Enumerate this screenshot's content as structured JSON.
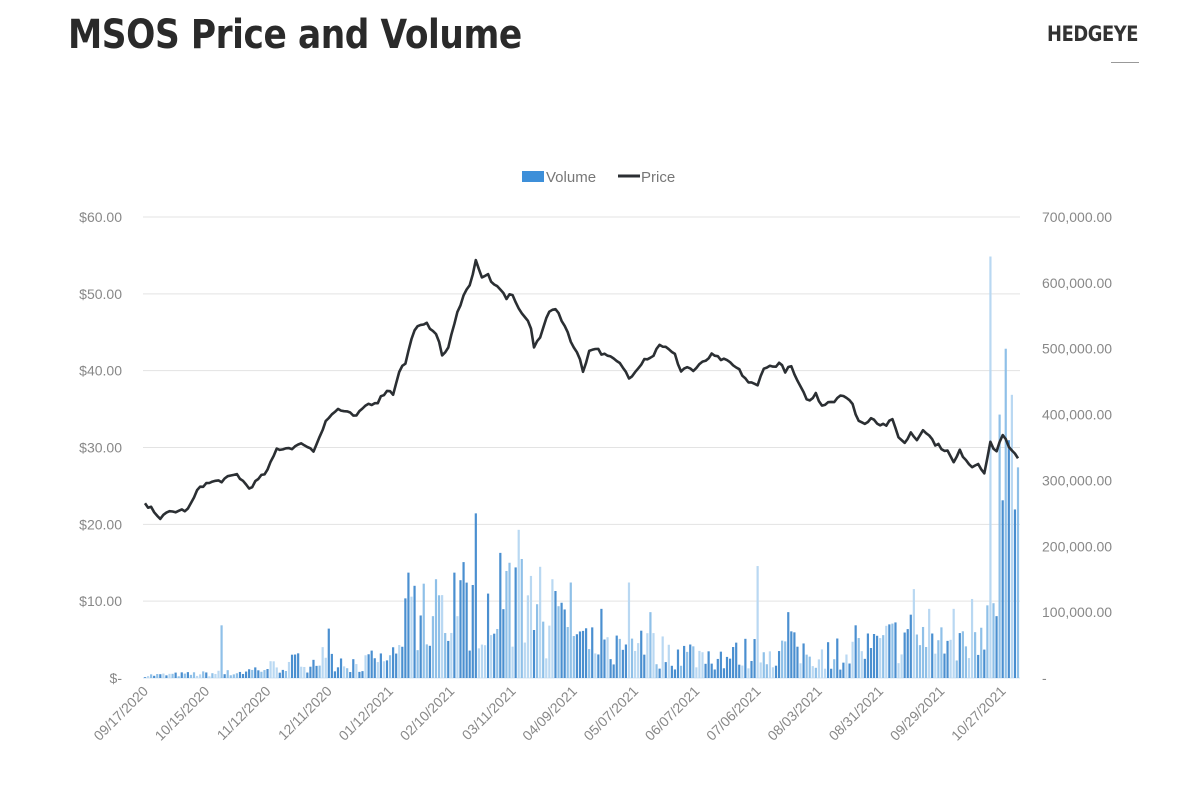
{
  "header": {
    "title": "MSOS Price and Volume",
    "brand": "HEDGEYE"
  },
  "chart_data": {
    "type": "bar+line",
    "title": "MSOS Price and Volume",
    "legend": {
      "placement": "top-center",
      "items": [
        {
          "name": "Volume",
          "type": "bar",
          "color": "#3d8fd9"
        },
        {
          "name": "Price",
          "type": "line",
          "color": "#2b2f33"
        }
      ]
    },
    "left_axis": {
      "label": "Price",
      "range": [
        0,
        60
      ],
      "ticks": [
        {
          "value": 0,
          "label": "$-"
        },
        {
          "value": 10,
          "label": "$10.00"
        },
        {
          "value": 20,
          "label": "$20.00"
        },
        {
          "value": 30,
          "label": "$30.00"
        },
        {
          "value": 40,
          "label": "$40.00"
        },
        {
          "value": 50,
          "label": "$50.00"
        },
        {
          "value": 60,
          "label": "$60.00"
        }
      ]
    },
    "right_axis": {
      "label": "Volume",
      "range": [
        0,
        700000
      ],
      "ticks": [
        {
          "value": 0,
          "label": "-"
        },
        {
          "value": 100000,
          "label": "100,000.00"
        },
        {
          "value": 200000,
          "label": "200,000.00"
        },
        {
          "value": 300000,
          "label": "300,000.00"
        },
        {
          "value": 400000,
          "label": "400,000.00"
        },
        {
          "value": 500000,
          "label": "500,000.00"
        },
        {
          "value": 600000,
          "label": "600,000.00"
        },
        {
          "value": 700000,
          "label": "700,000.00"
        }
      ]
    },
    "x_axis": {
      "tick_every_n_days": 20,
      "ticks": [
        "09/17/2020",
        "10/15/2020",
        "11/12/2020",
        "12/11/2020",
        "01/12/2021",
        "02/10/2021",
        "03/11/2021",
        "04/09/2021",
        "05/07/2021",
        "06/07/2021",
        "07/06/2021",
        "08/03/2021",
        "08/31/2021",
        "09/29/2021",
        "10/27/2021"
      ]
    },
    "grid": true,
    "n_days": 278,
    "price_keypoints": [
      [
        0,
        22.5
      ],
      [
        3,
        21.8
      ],
      [
        5,
        20.8
      ],
      [
        8,
        21.6
      ],
      [
        14,
        21.9
      ],
      [
        18,
        25.0
      ],
      [
        22,
        25.5
      ],
      [
        25,
        25.7
      ],
      [
        30,
        26.5
      ],
      [
        34,
        24.7
      ],
      [
        38,
        26.2
      ],
      [
        40,
        27.0
      ],
      [
        43,
        29.8
      ],
      [
        48,
        30.0
      ],
      [
        52,
        30.5
      ],
      [
        55,
        29.5
      ],
      [
        59,
        33.5
      ],
      [
        63,
        35.0
      ],
      [
        66,
        34.5
      ],
      [
        69,
        34.0
      ],
      [
        72,
        35.5
      ],
      [
        76,
        36.0
      ],
      [
        79,
        37.5
      ],
      [
        81,
        37.0
      ],
      [
        83,
        40.0
      ],
      [
        85,
        41.0
      ],
      [
        88,
        45.5
      ],
      [
        92,
        46.0
      ],
      [
        95,
        45.0
      ],
      [
        97,
        42.0
      ],
      [
        99,
        43.0
      ],
      [
        102,
        47.5
      ],
      [
        104,
        50.0
      ],
      [
        106,
        51.0
      ],
      [
        108,
        54.5
      ],
      [
        110,
        52.0
      ],
      [
        112,
        52.5
      ],
      [
        114,
        51.0
      ],
      [
        116,
        50.5
      ],
      [
        118,
        49.5
      ],
      [
        120,
        50.0
      ],
      [
        122,
        48.0
      ],
      [
        124,
        47.0
      ],
      [
        126,
        45.5
      ],
      [
        127,
        43.0
      ],
      [
        129,
        44.5
      ],
      [
        131,
        47.0
      ],
      [
        133,
        48.0
      ],
      [
        135,
        47.5
      ],
      [
        138,
        45.0
      ],
      [
        140,
        43.0
      ],
      [
        142,
        41.5
      ],
      [
        143,
        40.0
      ],
      [
        145,
        42.5
      ],
      [
        147,
        43.0
      ],
      [
        150,
        42.0
      ],
      [
        153,
        41.5
      ],
      [
        156,
        40.5
      ],
      [
        158,
        39.0
      ],
      [
        160,
        40.0
      ],
      [
        163,
        41.5
      ],
      [
        166,
        42.0
      ],
      [
        168,
        43.5
      ],
      [
        170,
        43.0
      ],
      [
        173,
        42.0
      ],
      [
        175,
        40.0
      ],
      [
        177,
        40.5
      ],
      [
        179,
        40.0
      ],
      [
        182,
        41.0
      ],
      [
        185,
        42.0
      ],
      [
        188,
        41.5
      ],
      [
        191,
        41.0
      ],
      [
        194,
        40.0
      ],
      [
        197,
        38.5
      ],
      [
        200,
        38.0
      ],
      [
        202,
        40.5
      ],
      [
        205,
        40.5
      ],
      [
        207,
        41.0
      ],
      [
        209,
        40.0
      ],
      [
        211,
        40.5
      ],
      [
        213,
        38.5
      ],
      [
        215,
        37.0
      ],
      [
        217,
        36.0
      ],
      [
        219,
        37.0
      ],
      [
        221,
        35.5
      ],
      [
        223,
        36.0
      ],
      [
        225,
        36.0
      ],
      [
        227,
        37.0
      ],
      [
        229,
        36.5
      ],
      [
        231,
        35.5
      ],
      [
        233,
        33.5
      ],
      [
        235,
        33.0
      ],
      [
        237,
        34.0
      ],
      [
        240,
        33.0
      ],
      [
        242,
        33.0
      ],
      [
        244,
        33.5
      ],
      [
        246,
        31.5
      ],
      [
        248,
        30.5
      ],
      [
        250,
        32.0
      ],
      [
        252,
        31.0
      ],
      [
        254,
        32.5
      ],
      [
        256,
        31.5
      ],
      [
        258,
        30.5
      ],
      [
        260,
        30.0
      ],
      [
        262,
        29.5
      ],
      [
        264,
        28.0
      ],
      [
        266,
        29.5
      ],
      [
        268,
        28.5
      ],
      [
        270,
        27.5
      ],
      [
        272,
        28.0
      ],
      [
        274,
        26.8
      ],
      [
        276,
        30.5
      ],
      [
        278,
        29.5
      ],
      [
        280,
        31.8
      ],
      [
        282,
        30.0
      ],
      [
        284,
        29.0
      ],
      [
        285,
        28.5
      ]
    ],
    "volume_profile": [
      [
        0,
        5000
      ],
      [
        20,
        8000
      ],
      [
        30,
        10000
      ],
      [
        40,
        20000
      ],
      [
        50,
        30000
      ],
      [
        60,
        40000
      ],
      [
        70,
        25000
      ],
      [
        80,
        40000
      ],
      [
        85,
        90000
      ],
      [
        90,
        110000
      ],
      [
        100,
        120000
      ],
      [
        108,
        160000
      ],
      [
        112,
        140000
      ],
      [
        120,
        150000
      ],
      [
        128,
        130000
      ],
      [
        135,
        100000
      ],
      [
        140,
        80000
      ],
      [
        145,
        60000
      ],
      [
        150,
        55000
      ],
      [
        160,
        60000
      ],
      [
        170,
        50000
      ],
      [
        180,
        45000
      ],
      [
        190,
        40000
      ],
      [
        200,
        50000
      ],
      [
        210,
        55000
      ],
      [
        220,
        45000
      ],
      [
        230,
        50000
      ],
      [
        240,
        60000
      ],
      [
        245,
        75000
      ],
      [
        250,
        80000
      ],
      [
        255,
        70000
      ],
      [
        260,
        60000
      ],
      [
        265,
        70000
      ],
      [
        270,
        80000
      ],
      [
        274,
        120000
      ],
      [
        276,
        280000
      ],
      [
        278,
        200000
      ],
      [
        280,
        250000
      ],
      [
        282,
        300000
      ],
      [
        285,
        260000
      ]
    ],
    "volume_spikes": [
      [
        25,
        80000
      ],
      [
        60,
        75000
      ],
      [
        75,
        30000
      ],
      [
        86,
        160000
      ],
      [
        88,
        140000
      ],
      [
        95,
        150000
      ],
      [
        101,
        160000
      ],
      [
        108,
        250000
      ],
      [
        116,
        190000
      ],
      [
        119,
        175000
      ],
      [
        122,
        225000
      ],
      [
        126,
        155000
      ],
      [
        133,
        150000
      ],
      [
        139,
        145000
      ],
      [
        149,
        105000
      ],
      [
        158,
        145000
      ],
      [
        165,
        100000
      ],
      [
        200,
        170000
      ],
      [
        210,
        100000
      ],
      [
        232,
        80000
      ],
      [
        251,
        135000
      ],
      [
        256,
        105000
      ],
      [
        264,
        105000
      ],
      [
        270,
        120000
      ],
      [
        276,
        640000
      ],
      [
        279,
        400000
      ],
      [
        281,
        500000
      ],
      [
        283,
        430000
      ]
    ]
  }
}
